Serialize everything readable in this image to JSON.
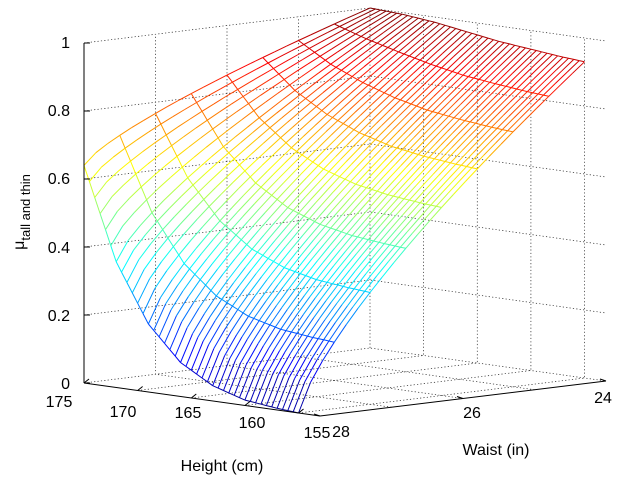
{
  "chart_data": {
    "type": "surface",
    "title": "",
    "xlabel": "Height (cm)",
    "ylabel": "Waist (in)",
    "zlabel_main": "μ",
    "zlabel_sub": "tall and thin",
    "x_ticks": [
      "155",
      "160",
      "165",
      "170",
      "175"
    ],
    "y_ticks": [
      "24",
      "26",
      "28"
    ],
    "z_ticks": [
      "0",
      "0.2",
      "0.4",
      "0.6",
      "0.8",
      "1"
    ],
    "xlim": [
      153,
      175
    ],
    "ylim": [
      24,
      28
    ],
    "zlim": [
      0,
      1
    ],
    "grid": true,
    "colormap": "jet",
    "edge_grid_x": [
      175,
      172,
      169,
      166,
      163,
      160,
      157,
      155
    ],
    "edge_grid_y": [
      28,
      27.5,
      27,
      26.5,
      26,
      25.5,
      25,
      24.5,
      24
    ],
    "z_at_min_waist": [
      1,
      0.995,
      0.985,
      0.97,
      0.955,
      0.945,
      0.935,
      0.93
    ],
    "z_at_max_waist": [
      0.64,
      0.37,
      0.2,
      0.1,
      0.045,
      0.016,
      0.005,
      0
    ],
    "colors": {
      "high": "#d9001e",
      "mid_high": "#ff8a00",
      "mid": "#ffe600",
      "mid_low": "#71ef7f",
      "low": "#15c0e8",
      "lowest": "#1e54e8"
    }
  }
}
